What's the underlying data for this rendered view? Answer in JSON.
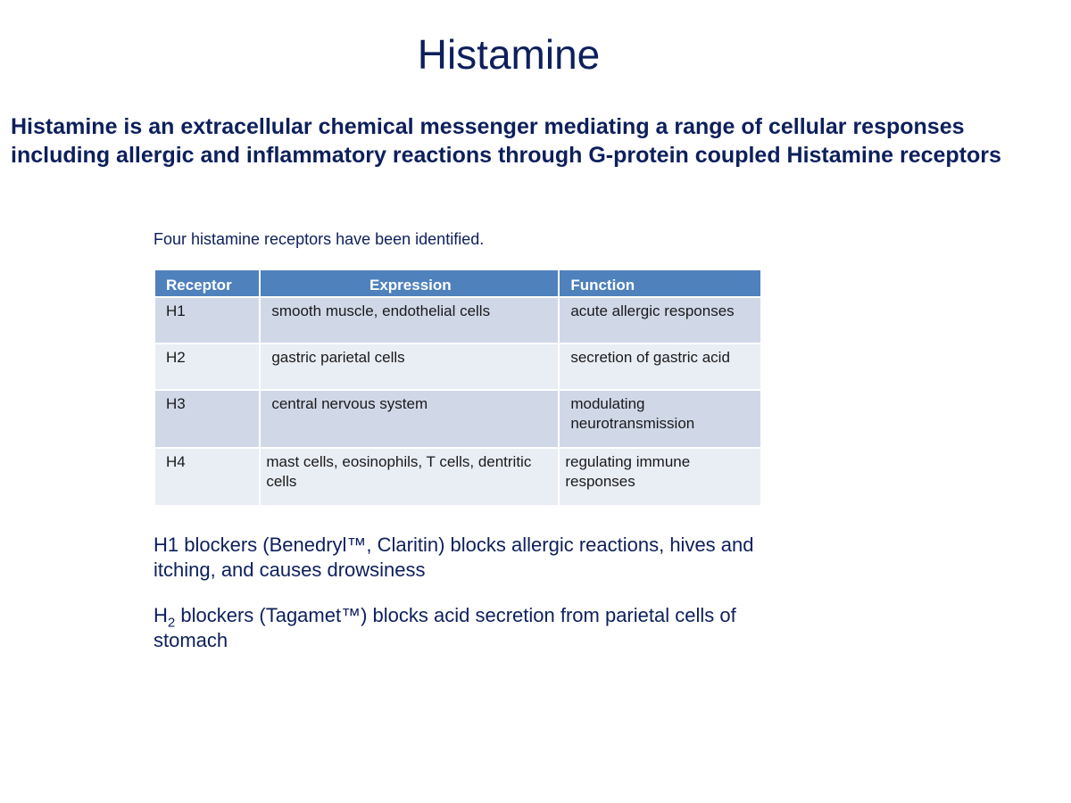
{
  "title": "Histamine",
  "intro": {
    "line1": "Histamine is an extracellular chemical messenger mediating a range of cellular responses",
    "line2": "including allergic and inflammatory reactions through G-protein coupled Histamine receptors"
  },
  "caption": "Four histamine receptors have been identified.",
  "table": {
    "headers": {
      "receptor": "Receptor",
      "expression": "Expression",
      "function": "Function"
    },
    "rows": [
      {
        "receptor": "H1",
        "expression": "smooth muscle, endothelial cells",
        "function": "acute allergic responses"
      },
      {
        "receptor": "H2",
        "expression": "gastric parietal cells",
        "function": "secretion of gastric acid"
      },
      {
        "receptor": "H3",
        "expression": "central nervous system",
        "function": "modulating neurotransmission"
      },
      {
        "receptor": "H4",
        "expression": "mast cells, eosinophils, T cells, dentritic cells",
        "function": "regulating immune responses"
      }
    ]
  },
  "blockers": {
    "h1_text": "H1 blockers (Benedryl™, Claritin) blocks allergic reactions, hives and itching, and causes drowsiness",
    "h2_prefix": "H",
    "h2_sub": "2",
    "h2_text": " blockers (Tagamet™) blocks acid secretion from parietal cells of stomach"
  },
  "colors": {
    "title_text": "#0d1f5c",
    "header_fill": "#4f81bd",
    "row_dark": "#d0d8e8",
    "row_light": "#e9edf4"
  }
}
